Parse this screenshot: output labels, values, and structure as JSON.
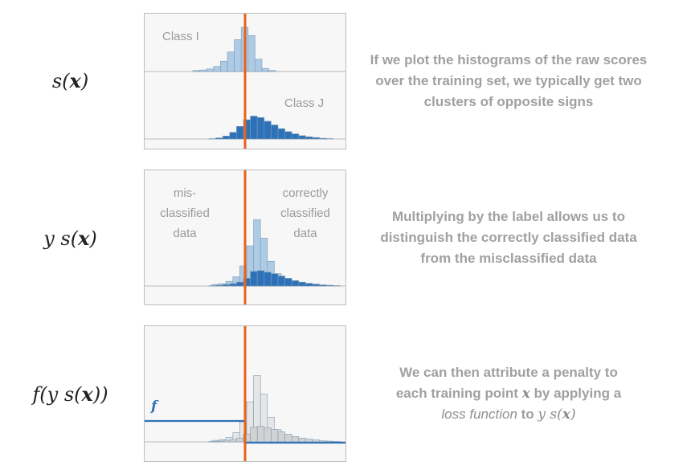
{
  "rows": [
    {
      "formula": [
        "s(",
        "x",
        ")"
      ],
      "labels": {
        "class_i": "Class I",
        "class_j": "Class J"
      },
      "description": "If we plot the histograms of the raw scores over the training set, we typically get two clusters of opposite signs"
    },
    {
      "formula": [
        "y s(",
        "x",
        ")"
      ],
      "labels": {
        "left": "mis-\nclassified\ndata",
        "right": "correctly\nclassified\ndata"
      },
      "description": "Multiplying by the label allows us to distinguish the correctly classified data from the misclassified data"
    },
    {
      "formula": [
        "f(y s(",
        "x",
        "))"
      ],
      "labels": {
        "f": "f"
      },
      "description_parts": {
        "line1": "We can then attribute a penalty to",
        "line2_pre": "each training point",
        "line2_x": "x",
        "line2_post": "by applying a",
        "line3_italic": "loss function",
        "line3_to": "to",
        "line3_math_pre": "y s(",
        "line3_math_x": "x",
        "line3_math_post": ")"
      }
    }
  ],
  "colors": {
    "threshold": "#e8621a",
    "class_i_fill": "#aecbe5",
    "class_j_fill": "#2d72b8",
    "gray_fill": "#d2d2d2",
    "loss": "#2b72b8"
  },
  "histograms": {
    "panel1_class_i": [
      0.02,
      0.03,
      0.05,
      0.1,
      0.2,
      0.38,
      0.62,
      0.86,
      0.7,
      0.24,
      0.06,
      0.02
    ],
    "panel1_class_j": [
      0.01,
      0.03,
      0.08,
      0.18,
      0.34,
      0.52,
      0.62,
      0.58,
      0.48,
      0.38,
      0.28,
      0.2,
      0.14,
      0.09,
      0.06,
      0.04,
      0.02,
      0.01
    ],
    "panel2_light": [
      0.02,
      0.03,
      0.06,
      0.12,
      0.26,
      0.52,
      0.86,
      0.62,
      0.32,
      0.16,
      0.09,
      0.05,
      0.03,
      0.02
    ],
    "panel2_dark": [
      0.01,
      0.02,
      0.04,
      0.06,
      0.1,
      0.2,
      0.38,
      0.4,
      0.36,
      0.32,
      0.26,
      0.2,
      0.14,
      0.1,
      0.07,
      0.05,
      0.03,
      0.02,
      0.01
    ]
  }
}
